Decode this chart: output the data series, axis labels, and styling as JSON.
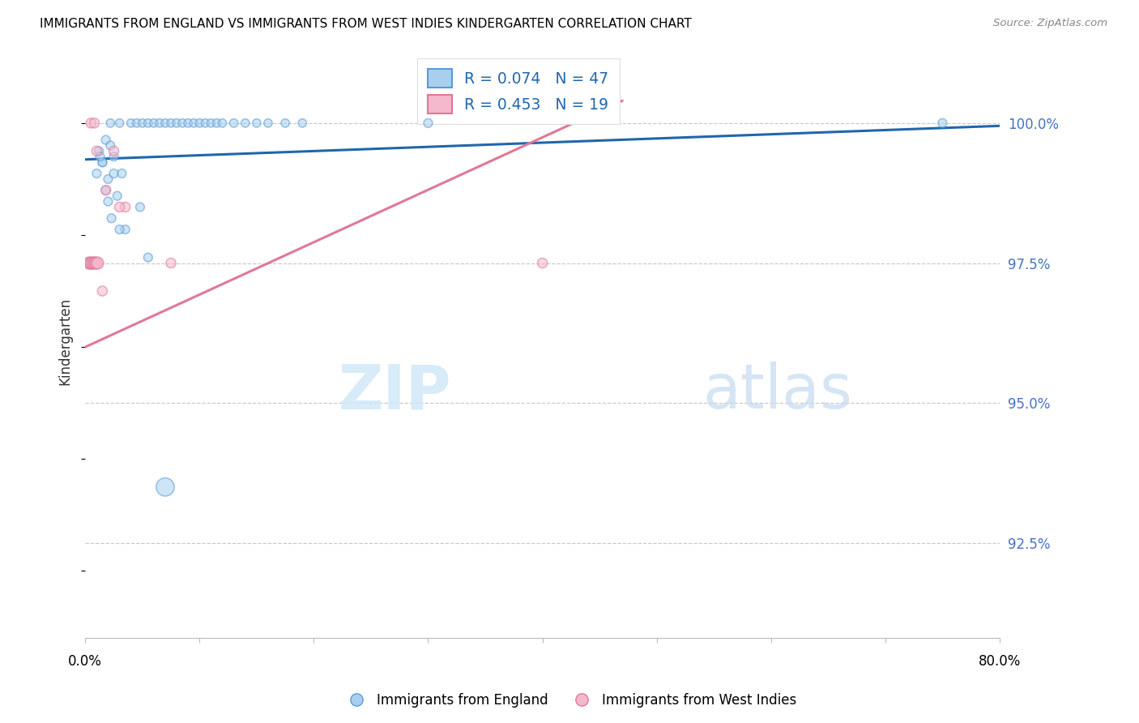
{
  "title": "IMMIGRANTS FROM ENGLAND VS IMMIGRANTS FROM WEST INDIES KINDERGARTEN CORRELATION CHART",
  "source": "Source: ZipAtlas.com",
  "ylabel": "Kindergarten",
  "xlim": [
    0.0,
    80.0
  ],
  "ylim": [
    90.8,
    101.4
  ],
  "ytick_values": [
    92.5,
    95.0,
    97.5,
    100.0
  ],
  "legend_blue_label": "R = 0.074   N = 47",
  "legend_pink_label": "R = 0.453   N = 19",
  "legend_entry1": "Immigrants from England",
  "legend_entry2": "Immigrants from West Indies",
  "blue_face": "#a8d0ee",
  "blue_edge": "#5b9bd5",
  "pink_face": "#f4b8cc",
  "pink_edge": "#e07898",
  "blue_line_color": "#2166ac",
  "pink_line_color": "#e07898",
  "blue_trend_x0": 0.0,
  "blue_trend_x1": 80.0,
  "blue_trend_y0": 99.35,
  "blue_trend_y1": 99.95,
  "pink_trend_x0": 0.0,
  "pink_trend_x1": 47.0,
  "pink_trend_y0": 96.0,
  "pink_trend_y1": 100.4,
  "blue_pts_x": [
    2.2,
    3.0,
    4.0,
    4.5,
    5.0,
    5.5,
    6.0,
    6.5,
    7.0,
    7.5,
    8.0,
    8.5,
    9.0,
    9.5,
    10.0,
    10.5,
    11.0,
    11.5,
    12.0,
    13.0,
    14.0,
    15.0,
    16.0,
    17.5,
    19.0,
    1.8,
    2.5,
    3.2,
    1.5,
    2.0,
    2.8,
    1.2,
    1.8,
    2.3,
    3.5,
    5.5,
    1.0,
    2.0,
    3.0,
    75.0,
    7.0,
    1.5,
    2.5,
    30.0,
    4.8,
    1.3,
    2.2
  ],
  "blue_pts_y": [
    100.0,
    100.0,
    100.0,
    100.0,
    100.0,
    100.0,
    100.0,
    100.0,
    100.0,
    100.0,
    100.0,
    100.0,
    100.0,
    100.0,
    100.0,
    100.0,
    100.0,
    100.0,
    100.0,
    100.0,
    100.0,
    100.0,
    100.0,
    100.0,
    100.0,
    99.7,
    99.4,
    99.1,
    99.3,
    99.0,
    98.7,
    99.5,
    98.8,
    98.3,
    98.1,
    97.6,
    99.1,
    98.6,
    98.1,
    100.0,
    93.5,
    99.3,
    99.1,
    100.0,
    98.5,
    99.4,
    99.6
  ],
  "blue_pts_size": [
    55,
    55,
    55,
    55,
    55,
    55,
    55,
    55,
    55,
    55,
    55,
    55,
    55,
    55,
    55,
    55,
    55,
    55,
    55,
    55,
    55,
    55,
    55,
    55,
    55,
    60,
    60,
    60,
    60,
    60,
    60,
    60,
    60,
    60,
    60,
    60,
    60,
    60,
    60,
    60,
    260,
    60,
    60,
    60,
    60,
    60,
    60
  ],
  "pink_pts_x": [
    0.5,
    0.8,
    1.0,
    0.3,
    0.4,
    0.5,
    0.6,
    0.7,
    0.8,
    0.9,
    1.0,
    1.1,
    1.5,
    3.5,
    2.5,
    40.0,
    7.5,
    3.0,
    1.8
  ],
  "pink_pts_y": [
    100.0,
    100.0,
    99.5,
    97.5,
    97.5,
    97.5,
    97.5,
    97.5,
    97.5,
    97.5,
    97.5,
    97.5,
    97.0,
    98.5,
    99.5,
    97.5,
    97.5,
    98.5,
    98.8
  ],
  "pink_pts_size": [
    75,
    75,
    75,
    110,
    110,
    110,
    110,
    110,
    110,
    110,
    110,
    110,
    75,
    75,
    75,
    75,
    75,
    75,
    75
  ],
  "watermark_zip_color": "#d0e8f8",
  "watermark_atlas_color": "#c5daf0",
  "title_fontsize": 11,
  "source_fontsize": 9.5,
  "ylabel_color": "#333333",
  "ytick_color": "#4472c4"
}
